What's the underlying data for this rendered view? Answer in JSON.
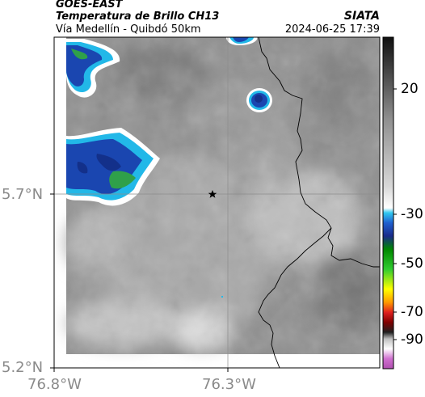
{
  "header": {
    "satellite": "GOES-EAST",
    "product": "Temperatura de Brillo CH13",
    "region": "Vía Medellín - Quibdó 50km",
    "agency": "SIATA",
    "timestamp": "2024-06-25 17:39"
  },
  "axes": {
    "y_ticks": [
      "5.7°N",
      "5.2°N"
    ],
    "x_ticks": [
      "76.8°W",
      "76.3°W"
    ]
  },
  "colorbar": {
    "labels": [
      "20",
      "-30",
      "-50",
      "-70",
      "-90"
    ]
  },
  "marker": {
    "icon": "star-icon"
  },
  "colors": {
    "cloud_blue": "#1a46b0",
    "cloud_cyan": "#22b8e8",
    "cloud_green": "#3aa33a",
    "border_line": "#000000"
  }
}
